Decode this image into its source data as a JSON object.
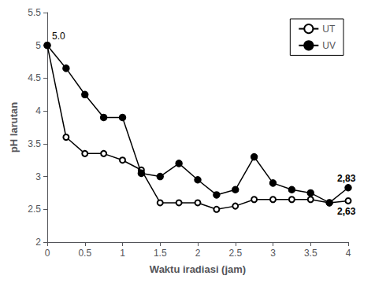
{
  "chart_data": {
    "type": "line",
    "xlabel": "Waktu iradiasi (jam)",
    "ylabel": "pH larutan",
    "x": [
      0,
      0.25,
      0.5,
      0.75,
      1.0,
      1.25,
      1.5,
      1.75,
      2.0,
      2.25,
      2.5,
      2.75,
      3.0,
      3.25,
      3.5,
      3.75,
      4.0
    ],
    "series": [
      {
        "name": "UT",
        "color": "#000000",
        "marker": "emptyCircle",
        "values": [
          5.0,
          3.6,
          3.35,
          3.35,
          3.25,
          3.1,
          2.6,
          2.6,
          2.6,
          2.5,
          2.55,
          2.65,
          2.65,
          2.65,
          2.65,
          2.6,
          2.63
        ]
      },
      {
        "name": "UV",
        "color": "#000000",
        "marker": "circle",
        "values": [
          5.0,
          4.65,
          4.25,
          3.9,
          3.9,
          3.05,
          3.0,
          3.2,
          2.95,
          2.72,
          2.8,
          3.3,
          2.9,
          2.8,
          2.75,
          2.6,
          2.83
        ]
      }
    ],
    "xlim": [
      0,
      4
    ],
    "ylim": [
      2,
      5.5
    ],
    "xticks": [
      0,
      0.5,
      1,
      1.5,
      2,
      2.5,
      3,
      3.5,
      4
    ],
    "yticks": [
      2,
      2.5,
      3,
      3.5,
      4,
      4.5,
      5,
      5.5
    ],
    "grid": false,
    "legend": "upper right",
    "annotations": [
      {
        "text": "5.0",
        "x": 0,
        "y": 5.0
      },
      {
        "text": "2,83",
        "x": 4.0,
        "y": 2.83
      },
      {
        "text": "2,63",
        "x": 4.0,
        "y": 2.63
      }
    ]
  }
}
